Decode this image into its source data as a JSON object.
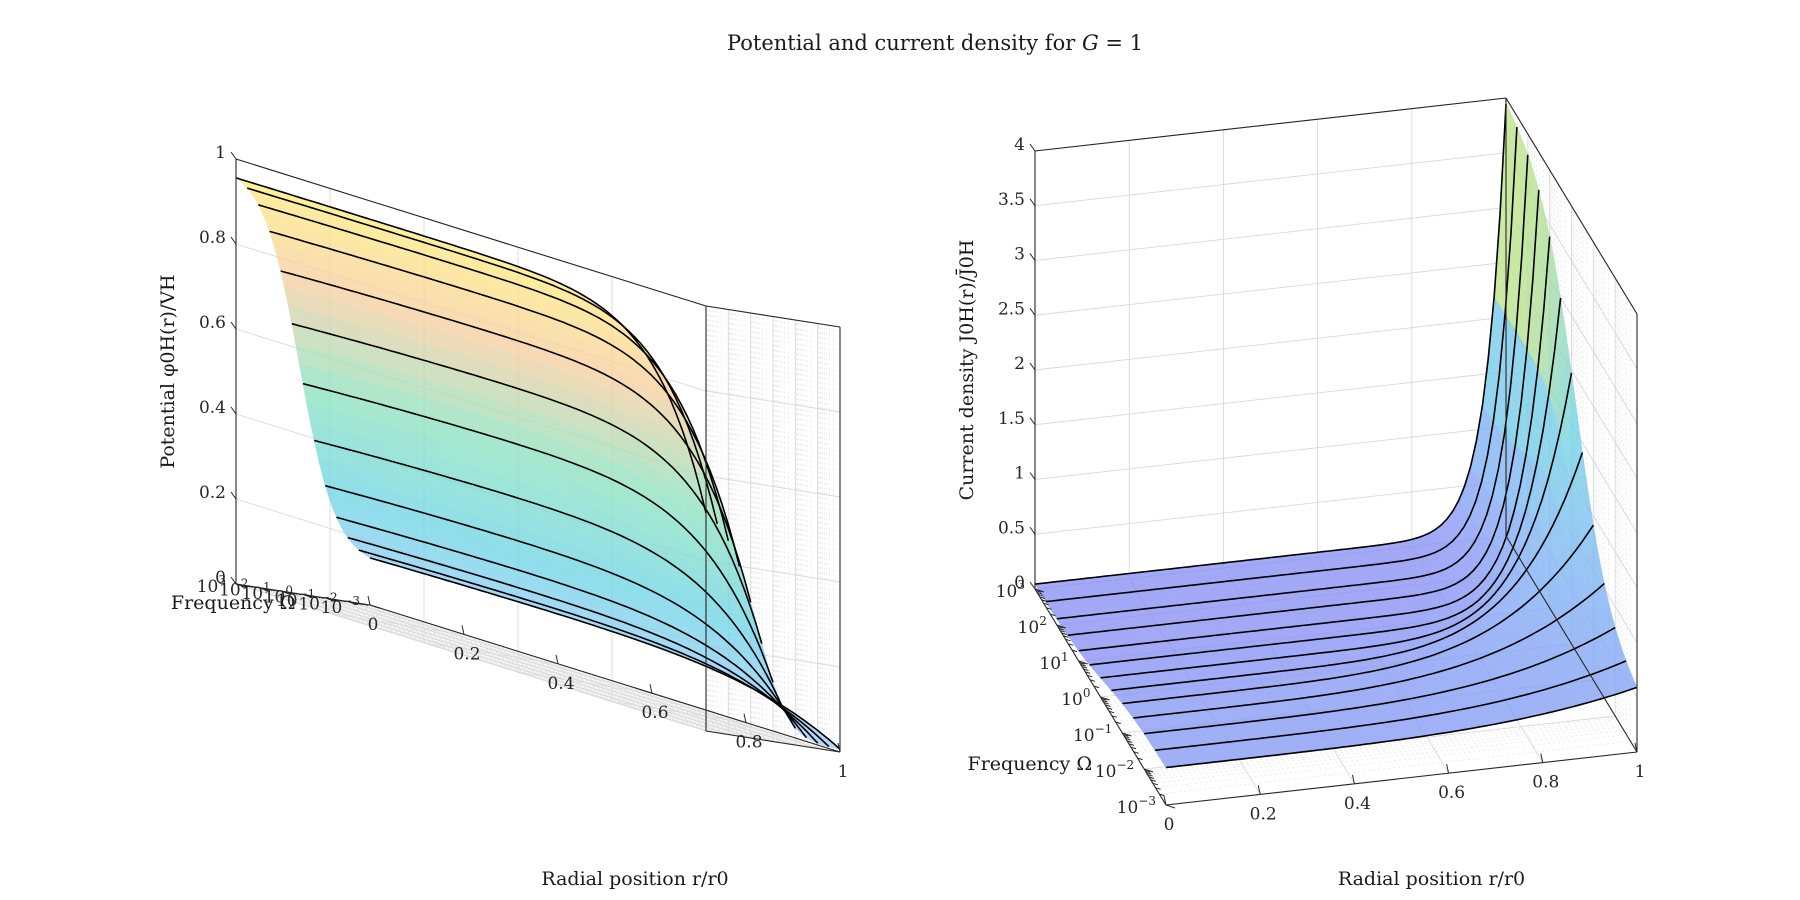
{
  "figure": {
    "title": "Potential and current density for G = 1"
  },
  "chart_data": [
    {
      "type": "surface",
      "name": "potential",
      "zlabel": "Potential φ0H(r)/VH",
      "xlabel": "Radial position r/r0",
      "ylabel": "Frequency Ω",
      "x_range": [
        0,
        1
      ],
      "y_range_log10": [
        -3,
        3
      ],
      "z_range": [
        0,
        1
      ],
      "x_ticks": [
        "0",
        "0.2",
        "0.4",
        "0.6",
        "0.8",
        "1"
      ],
      "y_ticks": [
        {
          "base": "10",
          "exp": "−3"
        },
        {
          "base": "10",
          "exp": "−2"
        },
        {
          "base": "10",
          "exp": "−1"
        },
        {
          "base": "10",
          "exp": "0"
        },
        {
          "base": "10",
          "exp": "1"
        },
        {
          "base": "10",
          "exp": "2"
        },
        {
          "base": "10",
          "exp": "3"
        }
      ],
      "z_ticks": [
        "0",
        "0.2",
        "0.4",
        "0.6",
        "0.8",
        "1"
      ],
      "grid": true,
      "colormap": [
        "#a8c8ff",
        "#6fd6e6",
        "#8fe3c0",
        "#f8cfa0",
        "#fff27a"
      ],
      "contour_log10_omega": [
        -3,
        -2.5,
        -2,
        -1.5,
        -1,
        -0.5,
        0,
        0.5,
        1,
        1.5,
        2,
        2.5,
        3
      ],
      "contour_center_values": [
        0.1,
        0.14,
        0.18,
        0.22,
        0.26,
        0.35,
        0.45,
        0.6,
        0.75,
        0.87,
        0.93,
        0.96,
        0.98
      ]
    },
    {
      "type": "surface",
      "name": "current-density",
      "zlabel": "Current density J0H(r)/J̄0H",
      "xlabel": "Radial position r/r0",
      "ylabel": "Frequency Ω",
      "x_range": [
        0,
        1
      ],
      "y_range_log10": [
        -3,
        3
      ],
      "z_range": [
        0,
        4
      ],
      "x_ticks": [
        "0",
        "0.2",
        "0.4",
        "0.6",
        "0.8",
        "1"
      ],
      "y_ticks": [
        {
          "base": "10",
          "exp": "−3"
        },
        {
          "base": "10",
          "exp": "−2"
        },
        {
          "base": "10",
          "exp": "−1"
        },
        {
          "base": "10",
          "exp": "0"
        },
        {
          "base": "10",
          "exp": "1"
        },
        {
          "base": "10",
          "exp": "2"
        },
        {
          "base": "10",
          "exp": "3"
        }
      ],
      "z_ticks": [
        "0",
        "0.5",
        "1",
        "1.5",
        "2",
        "2.5",
        "3",
        "3.5",
        "4"
      ],
      "grid": true,
      "colormap": [
        "#8a8ff5",
        "#7fb3f5",
        "#72d3e6",
        "#b8e28c",
        "#fff27a"
      ],
      "contour_log10_omega": [
        -3,
        -2.5,
        -2,
        -1.5,
        -1,
        -0.5,
        0,
        0.5,
        1,
        1.5,
        2,
        2.5,
        3
      ],
      "contour_center_values": [
        0.35,
        0.33,
        0.3,
        0.27,
        0.23,
        0.19,
        0.16,
        0.13,
        0.1,
        0.08,
        0.06,
        0.05,
        0.04
      ],
      "contour_edge_values": [
        0.5,
        0.55,
        0.62,
        0.72,
        0.85,
        1.05,
        1.35,
        1.9,
        2.6,
        3.2,
        3.7,
        3.9,
        4.0
      ]
    }
  ]
}
